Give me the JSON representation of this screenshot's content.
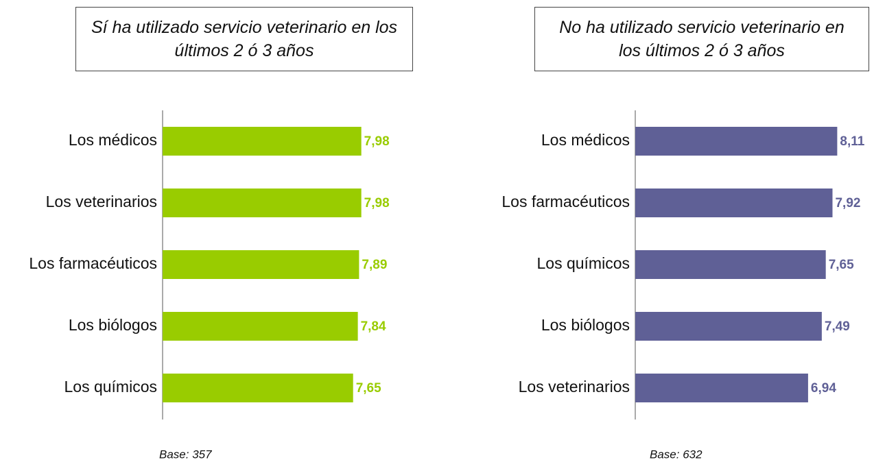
{
  "chart_data": [
    {
      "type": "bar",
      "orientation": "horizontal",
      "title": "Sí ha utilizado servicio veterinario en los últimos 2 ó 3 años",
      "categories": [
        "Los médicos",
        "Los veterinarios",
        "Los farmacéuticos",
        "Los biólogos",
        "Los químicos"
      ],
      "values": [
        7.98,
        7.98,
        7.89,
        7.84,
        7.65
      ],
      "value_labels": [
        "7,98",
        "7,98",
        "7,89",
        "7,84",
        "7,65"
      ],
      "color": "#99cc00",
      "xlim": [
        0,
        10
      ],
      "note": "Base: 357"
    },
    {
      "type": "bar",
      "orientation": "horizontal",
      "title": "No ha utilizado servicio veterinario en los últimos 2 ó 3 años",
      "categories": [
        "Los médicos",
        "Los farmacéuticos",
        "Los químicos",
        "Los biólogos",
        "Los veterinarios"
      ],
      "values": [
        8.11,
        7.92,
        7.65,
        7.49,
        6.94
      ],
      "value_labels": [
        "8,11",
        "7,92",
        "7,65",
        "7,49",
        "6,94"
      ],
      "color": "#5f6096",
      "xlim": [
        0,
        10
      ],
      "note": "Base: 632"
    }
  ]
}
